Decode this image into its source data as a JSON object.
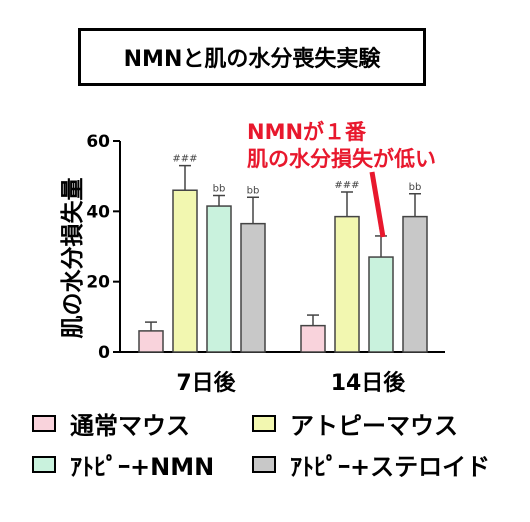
{
  "chart_data": {
    "type": "bar",
    "title": "NMNと肌の水分喪失実験",
    "ylabel": "肌の水分損失量",
    "ylim": [
      0,
      60
    ],
    "yticks": [
      0,
      20,
      40,
      60
    ],
    "categories": [
      "7日後",
      "14日後"
    ],
    "series": [
      {
        "name": "通常マウス",
        "color": "#f9d3dc",
        "values": [
          6,
          7.5
        ],
        "errors": [
          2.5,
          3
        ],
        "sig": [
          "",
          ""
        ]
      },
      {
        "name": "アトピーマウス",
        "color": "#f2f7b0",
        "values": [
          46,
          38.5
        ],
        "errors": [
          7,
          7
        ],
        "sig": [
          "###",
          "###"
        ]
      },
      {
        "name": "ｱﾄﾋﾟｰ+NMN",
        "color": "#c9f2dd",
        "values": [
          41.5,
          27
        ],
        "errors": [
          3,
          6
        ],
        "sig": [
          "bb",
          "*"
        ]
      },
      {
        "name": "ｱﾄﾋﾟｰ+ステロイド",
        "color": "#c8c8c8",
        "values": [
          36.5,
          38.5
        ],
        "errors": [
          7.5,
          6.5
        ],
        "sig": [
          "bb",
          "bb"
        ]
      }
    ],
    "annotation": {
      "lines": [
        "NMNが１番",
        "肌の水分損失が低い"
      ],
      "color": "#e8182d"
    },
    "legend_position": "bottom"
  }
}
